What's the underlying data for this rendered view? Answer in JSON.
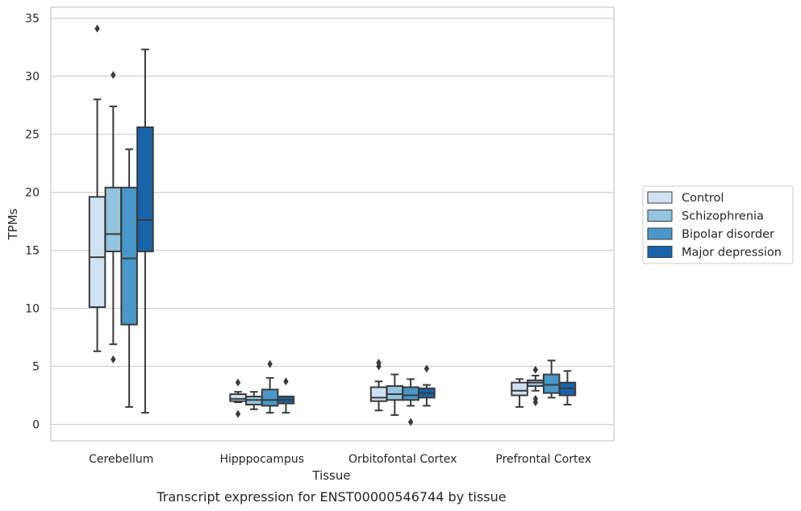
{
  "chart_data": {
    "type": "box",
    "caption": "Transcript expression for ENST00000546744 by tissue",
    "xlabel": "Tissue",
    "ylabel": "TPMs",
    "ylim": [
      -1.5,
      35.9
    ],
    "yticks": [
      0,
      5,
      10,
      15,
      20,
      25,
      30,
      35
    ],
    "grid": true,
    "legend_position": "right",
    "categories": [
      "Cerebellum",
      "Hipppocampus",
      "Orbitofontal Cortex",
      "Prefrontal Cortex"
    ],
    "series": [
      {
        "name": "Control",
        "color": "#d0e1f2",
        "boxes": [
          {
            "whislo": 6.3,
            "q1": 10.1,
            "med": 14.4,
            "q3": 19.6,
            "whishi": 28.0,
            "fliers": [
              34.1
            ]
          },
          {
            "whislo": 1.9,
            "q1": 2.0,
            "med": 2.2,
            "q3": 2.6,
            "whishi": 2.8,
            "fliers": [
              3.6,
              0.9
            ]
          },
          {
            "whislo": 1.2,
            "q1": 2.0,
            "med": 2.3,
            "q3": 3.2,
            "whishi": 3.7,
            "fliers": [
              5.3,
              5.0
            ]
          },
          {
            "whislo": 1.5,
            "q1": 2.5,
            "med": 2.9,
            "q3": 3.6,
            "whishi": 3.9,
            "fliers": []
          }
        ]
      },
      {
        "name": "Schizophrenia",
        "color": "#94c4df",
        "boxes": [
          {
            "whislo": 6.9,
            "q1": 14.9,
            "med": 16.4,
            "q3": 20.4,
            "whishi": 27.4,
            "fliers": [
              30.1,
              5.6
            ]
          },
          {
            "whislo": 1.3,
            "q1": 1.7,
            "med": 2.1,
            "q3": 2.4,
            "whishi": 2.8,
            "fliers": []
          },
          {
            "whislo": 0.8,
            "q1": 2.1,
            "med": 2.6,
            "q3": 3.3,
            "whishi": 4.3,
            "fliers": []
          },
          {
            "whislo": 2.9,
            "q1": 3.3,
            "med": 3.6,
            "q3": 3.8,
            "whishi": 4.2,
            "fliers": [
              4.7,
              2.2,
              1.9
            ]
          }
        ]
      },
      {
        "name": "Bipolar disorder",
        "color": "#4a98c9",
        "boxes": [
          {
            "whislo": 1.5,
            "q1": 8.6,
            "med": 14.3,
            "q3": 20.4,
            "whishi": 23.7,
            "fliers": []
          },
          {
            "whislo": 1.0,
            "q1": 1.6,
            "med": 2.1,
            "q3": 3.0,
            "whishi": 4.0,
            "fliers": [
              5.2
            ]
          },
          {
            "whislo": 1.6,
            "q1": 2.1,
            "med": 2.5,
            "q3": 3.2,
            "whishi": 3.9,
            "fliers": [
              0.2
            ]
          },
          {
            "whislo": 2.3,
            "q1": 2.7,
            "med": 3.4,
            "q3": 4.3,
            "whishi": 5.5,
            "fliers": []
          }
        ]
      },
      {
        "name": "Major depression",
        "color": "#1764ab",
        "boxes": [
          {
            "whislo": 1.0,
            "q1": 14.9,
            "med": 17.6,
            "q3": 25.6,
            "whishi": 32.3,
            "fliers": []
          },
          {
            "whislo": 1.0,
            "q1": 1.8,
            "med": 2.1,
            "q3": 2.4,
            "whishi": 2.4,
            "fliers": [
              3.7
            ]
          },
          {
            "whislo": 1.6,
            "q1": 2.3,
            "med": 2.7,
            "q3": 3.1,
            "whishi": 3.4,
            "fliers": [
              4.8
            ]
          },
          {
            "whislo": 1.7,
            "q1": 2.5,
            "med": 3.1,
            "q3": 3.6,
            "whishi": 4.6,
            "fliers": []
          }
        ]
      }
    ]
  }
}
